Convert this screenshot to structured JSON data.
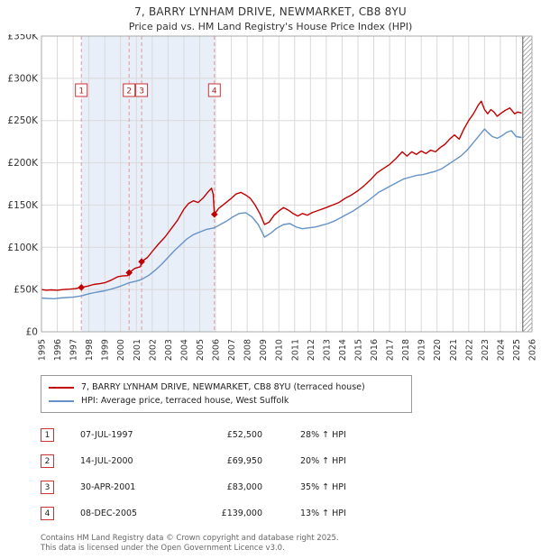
{
  "chart_data": {
    "type": "line",
    "title": "7, BARRY LYNHAM DRIVE, NEWMARKET, CB8 8YU",
    "subtitle": "Price paid vs. HM Land Registry's House Price Index (HPI)",
    "x_range": [
      1995,
      2026
    ],
    "y_range": [
      0,
      350000
    ],
    "y_tick_step": 50000,
    "y_tick_labels": [
      "£0",
      "£50K",
      "£100K",
      "£150K",
      "£200K",
      "£250K",
      "£300K",
      "£350K"
    ],
    "x_tick_labels": [
      "1995",
      "1996",
      "1997",
      "1998",
      "1999",
      "2000",
      "2001",
      "2002",
      "2003",
      "2004",
      "2005",
      "2006",
      "2007",
      "2008",
      "2009",
      "2010",
      "2011",
      "2012",
      "2013",
      "2014",
      "2015",
      "2016",
      "2017",
      "2018",
      "2019",
      "2020",
      "2021",
      "2022",
      "2023",
      "2024",
      "2025",
      "2026"
    ],
    "grid": true,
    "legend_position": "below",
    "owned_band": [
      1997.52,
      2005.93
    ],
    "future_band": [
      2025.42,
      2026
    ],
    "colors": {
      "price": "#c00000",
      "hpi": "#6593c6",
      "sale_line": "#e09999",
      "grid": "#d9d9d9",
      "band": "#e9eff9",
      "border": "#a8a8a8",
      "hatch": "#999999"
    },
    "series": [
      {
        "name": "7, BARRY LYNHAM DRIVE, NEWMARKET, CB8 8YU (terraced house)",
        "color": "#c00000",
        "points_k": [
          [
            1995.0,
            50
          ],
          [
            1995.3,
            49.2
          ],
          [
            1995.6,
            49.6
          ],
          [
            1996.0,
            49.2
          ],
          [
            1996.4,
            50
          ],
          [
            1996.8,
            50.5
          ],
          [
            1997.1,
            51
          ],
          [
            1997.52,
            52.5
          ],
          [
            1997.9,
            54
          ],
          [
            1998.3,
            56
          ],
          [
            1998.7,
            57
          ],
          [
            1999.0,
            58
          ],
          [
            1999.4,
            61
          ],
          [
            1999.8,
            65
          ],
          [
            2000.1,
            66
          ],
          [
            2000.45,
            66.5
          ],
          [
            2000.54,
            70
          ],
          [
            2000.9,
            75
          ],
          [
            2001.25,
            77
          ],
          [
            2001.33,
            83
          ],
          [
            2001.7,
            88
          ],
          [
            2002.0,
            95
          ],
          [
            2002.4,
            104
          ],
          [
            2002.8,
            112
          ],
          [
            2003.2,
            122
          ],
          [
            2003.6,
            132
          ],
          [
            2004.0,
            145
          ],
          [
            2004.3,
            152
          ],
          [
            2004.6,
            155
          ],
          [
            2004.9,
            153
          ],
          [
            2005.2,
            158
          ],
          [
            2005.5,
            165
          ],
          [
            2005.75,
            170
          ],
          [
            2005.85,
            163
          ],
          [
            2005.93,
            139
          ],
          [
            2006.2,
            146
          ],
          [
            2006.6,
            152
          ],
          [
            2007.0,
            158
          ],
          [
            2007.3,
            163
          ],
          [
            2007.6,
            165
          ],
          [
            2007.9,
            162
          ],
          [
            2008.2,
            158
          ],
          [
            2008.5,
            150
          ],
          [
            2008.8,
            140
          ],
          [
            2009.1,
            127
          ],
          [
            2009.4,
            130
          ],
          [
            2009.7,
            138
          ],
          [
            2010.0,
            143
          ],
          [
            2010.3,
            147
          ],
          [
            2010.6,
            144
          ],
          [
            2010.9,
            140
          ],
          [
            2011.2,
            137
          ],
          [
            2011.5,
            140
          ],
          [
            2011.8,
            138
          ],
          [
            2012.1,
            141
          ],
          [
            2012.4,
            143
          ],
          [
            2012.7,
            145
          ],
          [
            2013.0,
            147
          ],
          [
            2013.4,
            150
          ],
          [
            2013.8,
            153
          ],
          [
            2014.2,
            158
          ],
          [
            2014.6,
            162
          ],
          [
            2015.0,
            167
          ],
          [
            2015.4,
            173
          ],
          [
            2015.8,
            180
          ],
          [
            2016.2,
            188
          ],
          [
            2016.6,
            193
          ],
          [
            2017.0,
            198
          ],
          [
            2017.4,
            205
          ],
          [
            2017.8,
            213
          ],
          [
            2018.1,
            208
          ],
          [
            2018.4,
            213
          ],
          [
            2018.7,
            210
          ],
          [
            2019.0,
            214
          ],
          [
            2019.3,
            211
          ],
          [
            2019.6,
            215
          ],
          [
            2019.9,
            213
          ],
          [
            2020.2,
            218
          ],
          [
            2020.5,
            222
          ],
          [
            2020.8,
            228
          ],
          [
            2021.1,
            233
          ],
          [
            2021.4,
            228
          ],
          [
            2021.7,
            240
          ],
          [
            2022.0,
            250
          ],
          [
            2022.3,
            258
          ],
          [
            2022.6,
            268
          ],
          [
            2022.8,
            273
          ],
          [
            2023.0,
            263
          ],
          [
            2023.2,
            258
          ],
          [
            2023.4,
            263
          ],
          [
            2023.6,
            260
          ],
          [
            2023.8,
            255
          ],
          [
            2024.0,
            258
          ],
          [
            2024.3,
            262
          ],
          [
            2024.6,
            265
          ],
          [
            2024.9,
            258
          ],
          [
            2025.1,
            260
          ],
          [
            2025.35,
            259
          ]
        ]
      },
      {
        "name": "HPI: Average price, terraced house, West Suffolk",
        "color": "#6593c6",
        "points_k": [
          [
            1995.0,
            40
          ],
          [
            1995.4,
            39.5
          ],
          [
            1995.8,
            39.2
          ],
          [
            1996.2,
            40
          ],
          [
            1996.6,
            40.5
          ],
          [
            1997.0,
            41
          ],
          [
            1997.52,
            42.5
          ],
          [
            1998.0,
            45
          ],
          [
            1998.5,
            47
          ],
          [
            1999.0,
            48.5
          ],
          [
            1999.5,
            51
          ],
          [
            2000.0,
            54
          ],
          [
            2000.54,
            58
          ],
          [
            2001.0,
            60
          ],
          [
            2001.33,
            62
          ],
          [
            2001.8,
            67
          ],
          [
            2002.2,
            73
          ],
          [
            2002.6,
            80
          ],
          [
            2003.0,
            88
          ],
          [
            2003.4,
            96
          ],
          [
            2003.8,
            103
          ],
          [
            2004.2,
            110
          ],
          [
            2004.6,
            115
          ],
          [
            2005.0,
            118
          ],
          [
            2005.4,
            121
          ],
          [
            2005.93,
            123
          ],
          [
            2006.3,
            127
          ],
          [
            2006.7,
            131
          ],
          [
            2007.1,
            136
          ],
          [
            2007.5,
            140
          ],
          [
            2007.9,
            141
          ],
          [
            2008.3,
            136
          ],
          [
            2008.7,
            127
          ],
          [
            2009.1,
            112
          ],
          [
            2009.5,
            117
          ],
          [
            2009.9,
            123
          ],
          [
            2010.3,
            127
          ],
          [
            2010.7,
            128
          ],
          [
            2011.1,
            124
          ],
          [
            2011.5,
            122
          ],
          [
            2011.9,
            123
          ],
          [
            2012.3,
            124
          ],
          [
            2012.7,
            126
          ],
          [
            2013.1,
            128
          ],
          [
            2013.5,
            131
          ],
          [
            2013.9,
            135
          ],
          [
            2014.3,
            139
          ],
          [
            2014.7,
            143
          ],
          [
            2015.1,
            148
          ],
          [
            2015.5,
            153
          ],
          [
            2015.9,
            159
          ],
          [
            2016.3,
            165
          ],
          [
            2016.7,
            169
          ],
          [
            2017.1,
            173
          ],
          [
            2017.5,
            177
          ],
          [
            2017.9,
            181
          ],
          [
            2018.3,
            183
          ],
          [
            2018.7,
            185
          ],
          [
            2019.1,
            186
          ],
          [
            2019.5,
            188
          ],
          [
            2019.9,
            190
          ],
          [
            2020.3,
            193
          ],
          [
            2020.7,
            198
          ],
          [
            2021.1,
            203
          ],
          [
            2021.5,
            208
          ],
          [
            2021.9,
            215
          ],
          [
            2022.3,
            224
          ],
          [
            2022.7,
            233
          ],
          [
            2023.0,
            240
          ],
          [
            2023.2,
            236
          ],
          [
            2023.5,
            231
          ],
          [
            2023.8,
            229
          ],
          [
            2024.1,
            232
          ],
          [
            2024.4,
            236
          ],
          [
            2024.7,
            238
          ],
          [
            2025.0,
            231
          ],
          [
            2025.35,
            230
          ]
        ]
      }
    ],
    "sales": [
      {
        "n": "1",
        "x": 1997.52,
        "price_k": 52.5,
        "date": "07-JUL-1997",
        "price": "£52,500",
        "hpi_delta": "28% ↑ HPI"
      },
      {
        "n": "2",
        "x": 2000.54,
        "price_k": 69.95,
        "date": "14-JUL-2000",
        "price": "£69,950",
        "hpi_delta": "20% ↑ HPI"
      },
      {
        "n": "3",
        "x": 2001.33,
        "price_k": 83,
        "date": "30-APR-2001",
        "price": "£83,000",
        "hpi_delta": "35% ↑ HPI"
      },
      {
        "n": "4",
        "x": 2005.93,
        "price_k": 139,
        "date": "08-DEC-2005",
        "price": "£139,000",
        "hpi_delta": "13% ↑ HPI"
      }
    ]
  },
  "footer": {
    "line1": "Contains HM Land Registry data © Crown copyright and database right 2025.",
    "line2": "This data is licensed under the Open Government Licence v3.0."
  }
}
